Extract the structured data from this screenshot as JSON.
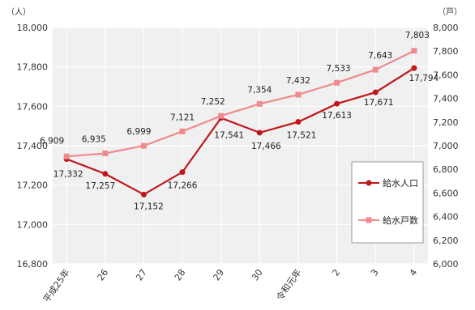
{
  "chart_data": {
    "type": "line",
    "title": "",
    "categories": [
      "平成25年",
      "26",
      "27",
      "28",
      "29",
      "30",
      "令和元年",
      "2",
      "3",
      "4"
    ],
    "y_left": {
      "unit": "（人）",
      "ylim": [
        16800,
        18000
      ],
      "ticks": [
        "16,800",
        "17,000",
        "17,200",
        "17,400",
        "17,600",
        "17,800",
        "18,000"
      ]
    },
    "y_right": {
      "unit": "（戸）",
      "ylim": [
        6000,
        8000
      ],
      "ticks": [
        "6,000",
        "6,200",
        "6,400",
        "6,600",
        "6,800",
        "7,000",
        "7,200",
        "7,400",
        "7,600",
        "7,800",
        "8,000"
      ]
    },
    "grid": true,
    "legend_position": "right",
    "series": [
      {
        "name": "給水人口",
        "axis": "left",
        "color": "#c0171c",
        "marker": "circle",
        "values": [
          17332,
          17257,
          17152,
          17266,
          17541,
          17466,
          17521,
          17613,
          17671,
          17794
        ],
        "labels": [
          "17,332",
          "17,257",
          "17,152",
          "17,266",
          "17,541",
          "17,466",
          "17,521",
          "17,613",
          "17,671",
          "17,794"
        ]
      },
      {
        "name": "給水戸数",
        "axis": "right",
        "color": "#ef8a8e",
        "marker": "square",
        "values": [
          6909,
          6935,
          6999,
          7121,
          7252,
          7354,
          7432,
          7533,
          7643,
          7803
        ],
        "labels": [
          "6,909",
          "6,935",
          "6,999",
          "7,121",
          "7,252",
          "7,354",
          "7,432",
          "7,533",
          "7,643",
          "7,803"
        ]
      }
    ]
  }
}
